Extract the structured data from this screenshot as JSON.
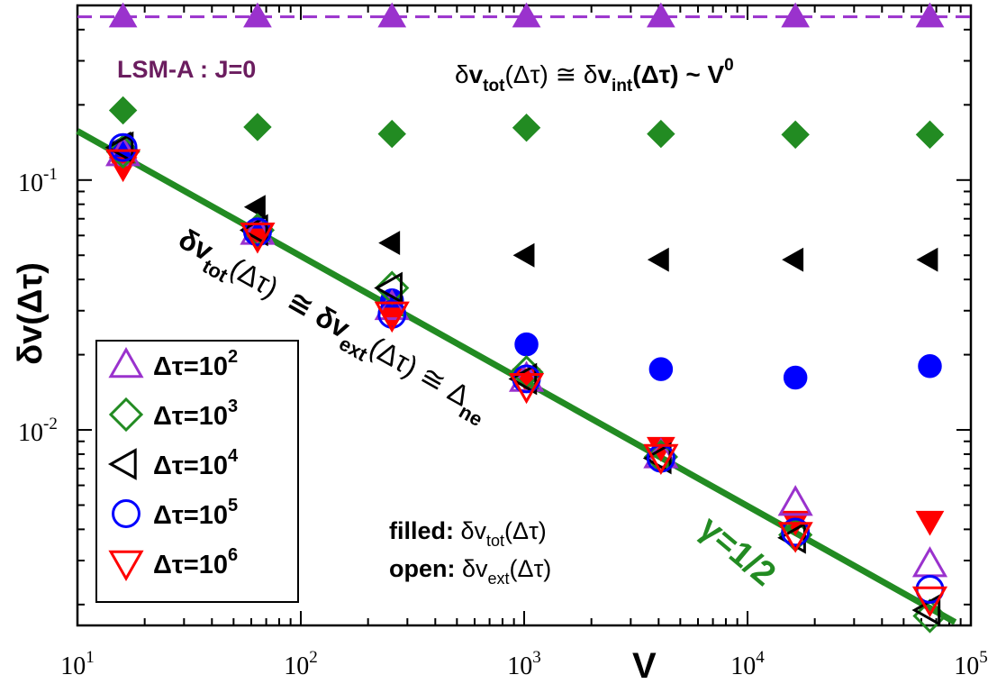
{
  "chart_data": {
    "type": "scatter",
    "xscale": "log",
    "yscale": "log",
    "xlim": [
      10,
      100000
    ],
    "ylim": [
      0.00165,
      0.5
    ],
    "xlabel": "V",
    "ylabel": "δv(Δτ)",
    "x_tick_labels": [
      {
        "base": "10",
        "exp": "1"
      },
      {
        "base": "10",
        "exp": "2"
      },
      {
        "base": "10",
        "exp": "3"
      },
      {
        "base": "10",
        "exp": "4"
      },
      {
        "base": "10",
        "exp": "5"
      }
    ],
    "y_tick_labels": [
      {
        "base": "10",
        "exp": "-1"
      },
      {
        "base": "10",
        "exp": "-2"
      }
    ],
    "x": [
      16,
      64,
      256,
      1024,
      4096,
      16384,
      65536
    ],
    "series": [
      {
        "name": "Δτ=10²",
        "exp": "2",
        "marker": "triangle-up",
        "color": "#9a32cd",
        "filled": [
          0.45,
          0.45,
          0.45,
          0.45,
          0.45,
          0.45,
          0.45
        ],
        "open": [
          0.128,
          0.062,
          0.031,
          0.016,
          0.0079,
          0.0051,
          0.0029
        ]
      },
      {
        "name": "Δτ=10³",
        "exp": "3",
        "marker": "diamond",
        "color": "#228b22",
        "filled": [
          0.19,
          0.163,
          0.153,
          0.162,
          0.153,
          0.152,
          0.152
        ],
        "open": [
          0.13,
          0.063,
          0.037,
          0.017,
          0.0078,
          0.0038,
          0.0018
        ]
      },
      {
        "name": "Δτ=10⁴",
        "exp": "4",
        "marker": "triangle-left",
        "color": "#000000",
        "filled": [
          0.14,
          0.078,
          0.056,
          0.05,
          0.048,
          0.048,
          0.048
        ],
        "open": [
          0.135,
          0.063,
          0.037,
          0.016,
          0.0077,
          0.0037,
          0.0019
        ]
      },
      {
        "name": "Δτ=10⁵",
        "exp": "5",
        "marker": "circle",
        "color": "#0000ff",
        "filled": [
          0.132,
          0.062,
          0.033,
          0.022,
          0.0175,
          0.0162,
          0.018
        ],
        "open": [
          0.135,
          0.062,
          0.029,
          0.016,
          0.0077,
          0.0039,
          0.0023
        ]
      },
      {
        "name": "Δτ=10⁶",
        "exp": "6",
        "marker": "triangle-down",
        "color": "#ff0000",
        "filled": [
          0.112,
          0.058,
          0.028,
          0.016,
          0.0085,
          0.0043,
          0.0043
        ],
        "open": [
          0.118,
          0.06,
          0.029,
          0.015,
          0.0078,
          0.0038,
          0.0021
        ]
      }
    ],
    "fit_line": {
      "x": [
        10,
        85000
      ],
      "y": [
        0.157,
        0.0017
      ],
      "color": "#228b22",
      "slope_label": "γ=1/2"
    },
    "reference_line": {
      "y": 0.45,
      "color": "#9a32cd",
      "style": "dashed"
    },
    "annotations": {
      "model_label": "LSM-A : J=0",
      "top_relation": {
        "t1": "δ",
        "t2": "v",
        "t3": "tot",
        "t4": "(Δτ)  ≅ δ",
        "t5": "v",
        "t6": "int",
        "t7": "(Δτ) ~ ",
        "t8": "V",
        "t9": "0"
      },
      "diag_relation": {
        "p1": "δv",
        "p2": "tot",
        "p3": "(Δτ)",
        "p4": "≅ δv",
        "p5": "ext",
        "p6": "(Δτ) ≅ Δ",
        "p7": "ne"
      },
      "filled_note": {
        "lead": "filled: ",
        "sym": "δv",
        "sub": "tot",
        "tail": "(Δτ)"
      },
      "open_note": {
        "lead": "open: ",
        "sym": "δv",
        "sub": "ext",
        "tail": "(Δτ)"
      },
      "slope_label": "γ=1/2"
    },
    "legend": {
      "position": "bottom-left",
      "prefix": "Δτ=10"
    }
  }
}
